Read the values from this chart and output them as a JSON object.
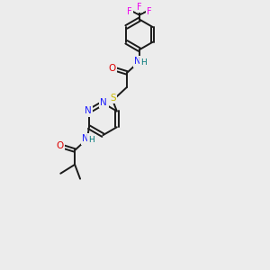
{
  "background_color": "#ececec",
  "bond_color": "#1a1a1a",
  "atom_colors": {
    "N": "#2020ff",
    "O": "#dd0000",
    "S": "#ccbb00",
    "F": "#ee00ee",
    "H": "#007777",
    "C": "#1a1a1a"
  },
  "figsize": [
    3.0,
    3.0
  ],
  "dpi": 100,
  "lw": 1.4,
  "fs": 7.5
}
